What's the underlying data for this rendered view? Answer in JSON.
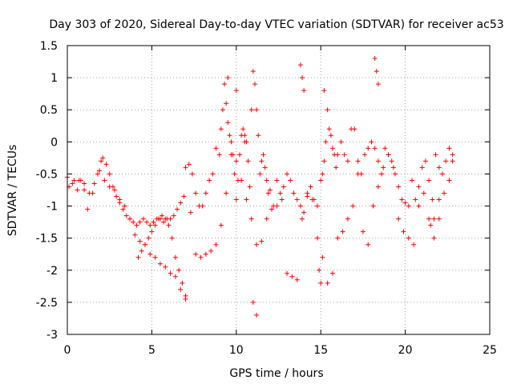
{
  "chart_data": {
    "type": "scatter",
    "title": "Day 303 of 2020, Sidereal Day-to-day VTEC variation (SDTVAR) for receiver ac53",
    "xlabel": "GPS time / hours",
    "ylabel": "SDTVAR / TECUs",
    "xlim": [
      0,
      25
    ],
    "ylim": [
      -3,
      1.5
    ],
    "xticks": [
      0,
      5,
      10,
      15,
      20,
      25
    ],
    "yticks": [
      -3,
      -2.5,
      -2,
      -1.5,
      -1,
      -0.5,
      0,
      0.5,
      1,
      1.5
    ],
    "xtick_labels": [
      "0",
      "5",
      "10",
      "15",
      "20",
      "25"
    ],
    "ytick_labels": [
      "-3",
      "-2.5",
      "-2",
      "-1.5",
      "-1",
      "-0.5",
      "0",
      "0.5",
      "1",
      "1.5"
    ],
    "grid": true,
    "marker": "+",
    "color": "#ff0000",
    "series": [
      {
        "name": "SDTVAR",
        "x": [
          0.0,
          0.3,
          0.6,
          0.8,
          1.0,
          1.2,
          1.5,
          1.8,
          2.0,
          2.1,
          2.3,
          2.5,
          2.7,
          2.9,
          3.1,
          3.3,
          3.5,
          3.7,
          3.9,
          4.1,
          4.3,
          4.5,
          4.7,
          4.9,
          5.1,
          5.3,
          5.5,
          5.7,
          5.9,
          6.1,
          6.3,
          6.5,
          6.7,
          6.9,
          7.0,
          7.2,
          7.4,
          7.6,
          7.8,
          8.0,
          8.2,
          8.4,
          8.6,
          8.8,
          9.0,
          9.1,
          9.2,
          9.3,
          9.4,
          9.5,
          9.6,
          9.7,
          9.8,
          9.9,
          10.0,
          10.1,
          10.2,
          10.3,
          10.4,
          10.5,
          10.6,
          10.7,
          10.8,
          10.9,
          11.0,
          11.1,
          11.2,
          11.3,
          11.4,
          11.5,
          11.6,
          11.7,
          11.8,
          11.9,
          12.0,
          12.2,
          12.4,
          12.6,
          12.8,
          13.0,
          13.2,
          13.4,
          13.6,
          13.8,
          14.0,
          14.2,
          14.4,
          14.6,
          14.8,
          15.0,
          15.1,
          15.2,
          15.3,
          15.4,
          15.5,
          15.6,
          15.7,
          15.8,
          15.9,
          16.0,
          16.2,
          16.4,
          16.6,
          16.8,
          17.0,
          17.2,
          17.4,
          17.6,
          17.8,
          18.0,
          18.2,
          18.4,
          18.6,
          18.8,
          19.0,
          19.2,
          19.4,
          19.6,
          19.8,
          20.0,
          20.2,
          20.4,
          20.6,
          20.8,
          21.0,
          21.2,
          21.4,
          21.6,
          21.8,
          22.0,
          22.2,
          22.4,
          22.6,
          22.8,
          0.1,
          0.4,
          0.7,
          1.0,
          1.3,
          1.6,
          1.9,
          2.2,
          2.5,
          2.8,
          3.1,
          3.4,
          3.7,
          4.0,
          4.3,
          4.6,
          4.9,
          5.2,
          5.5,
          5.8,
          6.1,
          6.4,
          6.7,
          7.0,
          7.3,
          7.6,
          7.9,
          8.2,
          8.5,
          8.8,
          9.1,
          9.4,
          9.7,
          10.0,
          10.3,
          10.6,
          10.9,
          11.2,
          11.5,
          11.8,
          12.1,
          12.4,
          12.7,
          13.0,
          13.3,
          13.6,
          13.9,
          14.2,
          14.5,
          14.8,
          15.1,
          15.4,
          15.7,
          16.0,
          16.3,
          16.6,
          16.9,
          17.2,
          17.5,
          17.8,
          18.1,
          18.4,
          18.7,
          19.0,
          19.3,
          19.6,
          19.9,
          20.2,
          20.5,
          20.8,
          21.1,
          21.4,
          21.7,
          22.0,
          22.3,
          22.6,
          22.8,
          4.2,
          4.4,
          4.6,
          4.8,
          5.0,
          5.2,
          5.4,
          5.6,
          5.8,
          6.0,
          6.2,
          6.4,
          6.6,
          6.8,
          7.0,
          9.5,
          10.0,
          10.5,
          11.0,
          11.2,
          13.8,
          13.9,
          14.0,
          14.9,
          15.0,
          15.2,
          18.2,
          18.3,
          18.4,
          21.5,
          21.7,
          22.0
        ],
        "y": [
          -0.55,
          -0.65,
          -0.75,
          -0.6,
          -0.65,
          -1.05,
          -0.8,
          -0.5,
          -0.3,
          -0.25,
          -0.35,
          -0.5,
          -0.7,
          -0.85,
          -0.95,
          -1.05,
          -1.15,
          -1.2,
          -1.25,
          -1.3,
          -1.25,
          -1.2,
          -1.25,
          -1.3,
          -1.25,
          -1.2,
          -1.2,
          -1.25,
          -1.2,
          -1.2,
          -1.15,
          -1.05,
          -0.95,
          -0.85,
          -0.4,
          -0.35,
          -0.5,
          -0.8,
          -1.0,
          -1.0,
          -0.8,
          -0.6,
          -0.5,
          -0.1,
          -0.2,
          0.2,
          0.5,
          0.9,
          0.6,
          0.3,
          0.1,
          0.0,
          -0.2,
          -0.5,
          -0.9,
          -0.6,
          -0.2,
          0.1,
          0.2,
          0.1,
          0.0,
          -0.3,
          -0.7,
          0.5,
          1.1,
          0.9,
          0.5,
          0.1,
          -0.5,
          -0.3,
          -0.2,
          -0.4,
          -0.6,
          -0.8,
          -0.75,
          -1.0,
          -0.6,
          -0.8,
          -0.7,
          -0.5,
          -0.6,
          -0.8,
          -0.9,
          -1.0,
          -1.1,
          -0.85,
          -0.7,
          -0.9,
          -1.0,
          -0.6,
          -0.5,
          -0.3,
          0.0,
          0.5,
          0.2,
          0.1,
          -0.1,
          -0.2,
          -0.4,
          -0.2,
          0.0,
          -0.2,
          -0.3,
          0.2,
          0.2,
          -0.3,
          -0.5,
          -0.2,
          -0.1,
          0.0,
          -0.1,
          -0.3,
          -0.5,
          -0.1,
          -0.2,
          -0.3,
          -0.5,
          -0.7,
          -0.9,
          -0.95,
          -1.0,
          -0.6,
          -0.9,
          -0.7,
          -0.4,
          -0.3,
          -0.6,
          -0.9,
          -0.2,
          -0.4,
          -0.5,
          -0.3,
          -0.1,
          -0.3,
          -0.7,
          -0.6,
          -0.6,
          -0.75,
          -0.8,
          -0.65,
          -0.45,
          -0.6,
          -0.7,
          -0.75,
          -0.9,
          -1.0,
          -1.2,
          -1.45,
          -1.55,
          -1.6,
          -1.75,
          -1.8,
          -1.9,
          -1.95,
          -2.05,
          -2.1,
          -2.3,
          -2.45,
          -1.1,
          -1.75,
          -1.8,
          -1.75,
          -1.7,
          -1.6,
          -1.3,
          -0.8,
          -0.2,
          -0.3,
          -0.6,
          -0.9,
          -1.2,
          -1.6,
          -1.55,
          -1.2,
          -1.05,
          -1.0,
          -0.9,
          -2.05,
          -2.1,
          -2.15,
          -1.2,
          -0.8,
          -0.9,
          -1.5,
          -1.8,
          -2.2,
          -2.05,
          -1.5,
          -1.4,
          -1.2,
          -1.0,
          -0.5,
          -1.4,
          -1.6,
          -1.0,
          -0.7,
          -0.4,
          -0.2,
          -0.4,
          -1.2,
          -1.4,
          -1.5,
          -1.6,
          -1.0,
          -0.8,
          -1.2,
          -1.5,
          -1.2,
          -0.8,
          -0.6,
          -0.2,
          -1.8,
          -1.7,
          -1.6,
          -1.5,
          -1.4,
          -1.3,
          -1.2,
          -1.15,
          -1.2,
          -1.3,
          -1.5,
          -1.8,
          -2.0,
          -2.2,
          -2.4,
          1.0,
          0.8,
          0.0,
          -2.5,
          -2.7,
          1.2,
          1.0,
          0.8,
          -2.0,
          -2.2,
          0.8,
          1.3,
          1.1,
          0.9,
          -1.3,
          -1.2,
          -0.9
        ]
      }
    ]
  }
}
